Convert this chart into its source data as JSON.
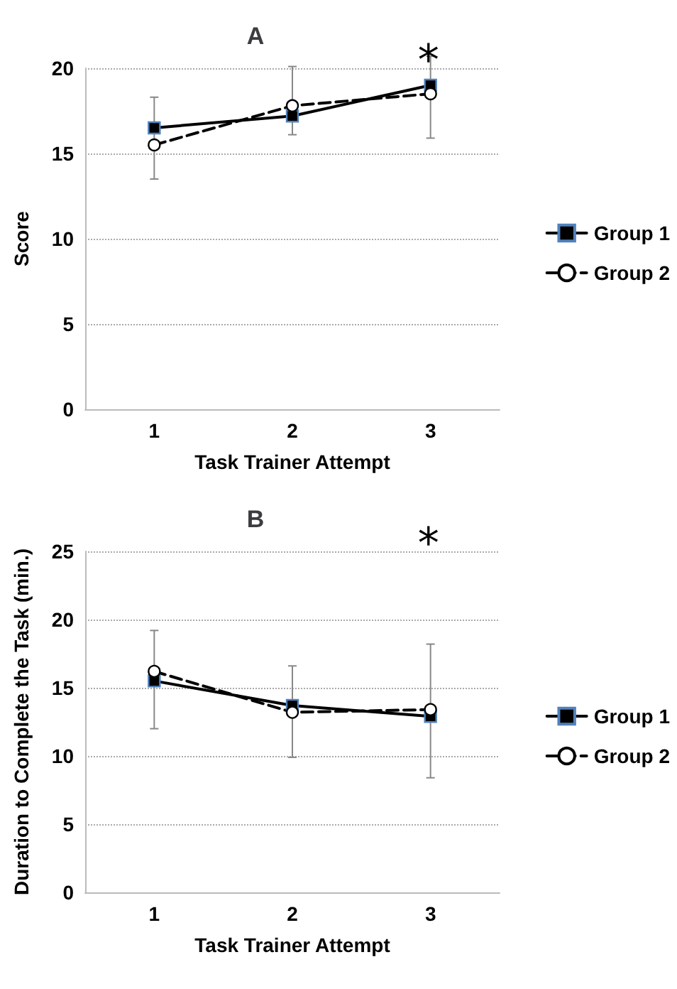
{
  "chart_data": [
    {
      "type": "line",
      "title": "A",
      "xlabel": "Task Trainer Attempt",
      "ylabel": "Score",
      "categories": [
        "1",
        "2",
        "3"
      ],
      "series": [
        {
          "name": "Group 1",
          "color": "#000000",
          "values": [
            16.5,
            17.2,
            19.0
          ],
          "marker": "square",
          "line_style": "solid"
        },
        {
          "name": "Group 2",
          "color": "#000000",
          "values": [
            15.5,
            17.8,
            18.5
          ],
          "marker": "circle",
          "line_style": "dashed",
          "errors": [
            [
              13.5,
              18.3
            ],
            [
              16.1,
              20.1
            ],
            [
              15.9,
              20.7
            ]
          ]
        }
      ],
      "ylim": [
        0,
        20
      ],
      "yticks": [
        0,
        5,
        10,
        15,
        20
      ],
      "grid": "y",
      "legend": "right",
      "annotations": [
        "*"
      ]
    },
    {
      "type": "line",
      "title": "B",
      "xlabel": "Task Trainer Attempt",
      "ylabel": "Duration to Complete the Task (min.)",
      "categories": [
        "1",
        "2",
        "3"
      ],
      "series": [
        {
          "name": "Group 1",
          "color": "#000000",
          "values": [
            15.5,
            13.7,
            12.9
          ],
          "marker": "square",
          "line_style": "solid"
        },
        {
          "name": "Group 2",
          "color": "#000000",
          "values": [
            16.2,
            13.2,
            13.4
          ],
          "marker": "circle",
          "line_style": "dashed",
          "errors": [
            [
              12.0,
              19.2
            ],
            [
              9.9,
              16.6
            ],
            [
              8.4,
              18.2
            ]
          ]
        }
      ],
      "ylim": [
        0,
        25
      ],
      "yticks": [
        0,
        5,
        10,
        15,
        20,
        25
      ],
      "grid": "y",
      "legend": "right",
      "annotations": [
        "*"
      ]
    }
  ]
}
